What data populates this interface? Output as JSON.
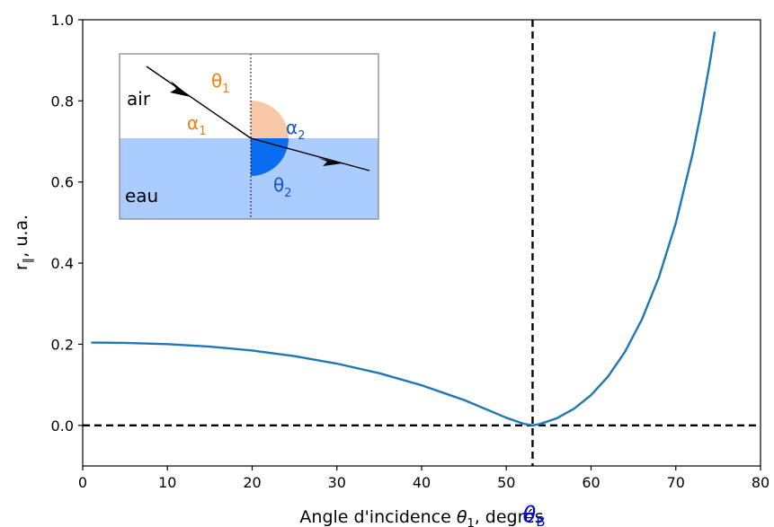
{
  "chart_data": {
    "type": "line",
    "xlabel": "Angle d'incidence θ₁, degrés",
    "ylabel": "r∥, u.a.",
    "xlim": [
      0,
      80
    ],
    "ylim": [
      -0.1,
      1.0
    ],
    "x_ticks": [
      0,
      10,
      20,
      30,
      40,
      50,
      60,
      70,
      80
    ],
    "y_ticks": [
      0.0,
      0.2,
      0.4,
      0.6,
      0.8,
      1.0
    ],
    "x_tick_labels": [
      "0",
      "10",
      "20",
      "30",
      "40",
      "50",
      "60",
      "70",
      "80"
    ],
    "y_tick_labels": [
      "0.0",
      "0.2",
      "0.4",
      "0.6",
      "0.8",
      "1.0"
    ],
    "grid": false,
    "series": [
      {
        "color": "#1f77b4",
        "x": [
          1,
          5,
          10,
          15,
          20,
          25,
          30,
          35,
          40,
          45,
          50,
          52,
          53.1,
          54,
          56,
          58,
          60,
          62,
          64,
          66,
          68,
          70,
          72,
          73,
          74,
          74.6
        ],
        "y": [
          0.2041,
          0.2033,
          0.2004,
          0.1943,
          0.1846,
          0.1708,
          0.1523,
          0.1286,
          0.0989,
          0.0626,
          0.0188,
          0.0042,
          0.0,
          0.0036,
          0.0179,
          0.0412,
          0.0746,
          0.1204,
          0.1813,
          0.2611,
          0.3647,
          0.4984,
          0.6709,
          0.7744,
          0.8919,
          0.9706
        ]
      }
    ],
    "reference_lines": {
      "horizontal_y": 0.0,
      "vertical_x": 53.1,
      "vertical_label": "θB",
      "vertical_label_color": "#0000ff",
      "style": "dashed",
      "color": "#000000"
    },
    "inset": {
      "medium_top": "air",
      "medium_bottom": "eau",
      "labels": {
        "theta1": "θ1",
        "alpha1": "α1",
        "alpha2": "α2",
        "theta2": "θ2"
      },
      "colors": {
        "water": "#aaccff",
        "theta1_fill": "#f8c8a8",
        "theta2_fill": "#0a6cf0",
        "orange_text": "#f07e12",
        "blue_text": "#1452c8"
      }
    }
  }
}
